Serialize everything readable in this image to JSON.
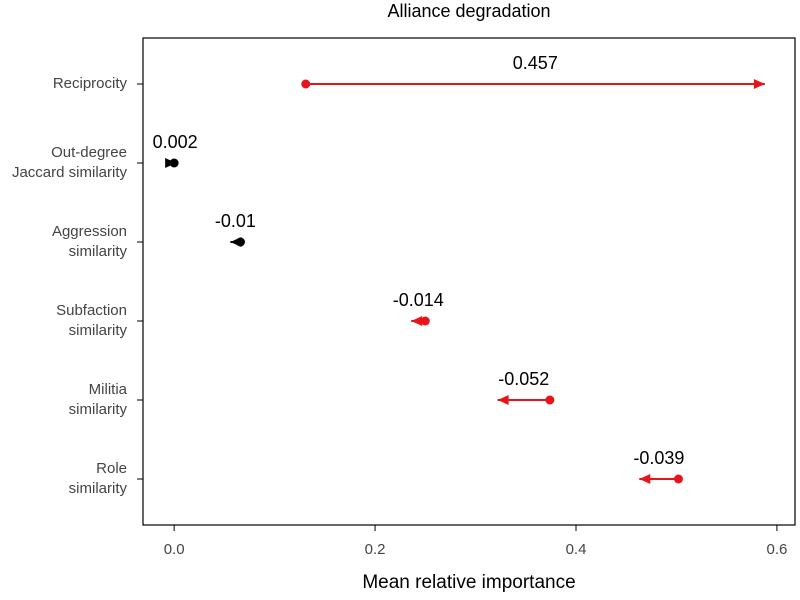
{
  "chart_data": {
    "type": "arrow",
    "title": "Alliance degradation",
    "xlabel": "Mean relative importance",
    "categories": [
      [
        "Reciprocity"
      ],
      [
        "Out-degree",
        "Jaccard similarity"
      ],
      [
        "Aggression",
        "similarity"
      ],
      [
        "Subfaction",
        "similarity"
      ],
      [
        "Militia",
        "similarity"
      ],
      [
        "Role",
        "similarity"
      ]
    ],
    "start": [
      0.131,
      0.0,
      0.066,
      0.25,
      0.374,
      0.502
    ],
    "change": [
      0.457,
      0.002,
      -0.01,
      -0.014,
      -0.052,
      -0.039
    ],
    "colors": [
      "#e8141b",
      "#000000",
      "#000000",
      "#e8141b",
      "#e8141b",
      "#e8141b"
    ],
    "xlim": [
      -0.031,
      0.618
    ],
    "xticks": [
      {
        "value": 0,
        "label": "0.0"
      },
      0.2,
      0.4,
      0.6
    ]
  }
}
